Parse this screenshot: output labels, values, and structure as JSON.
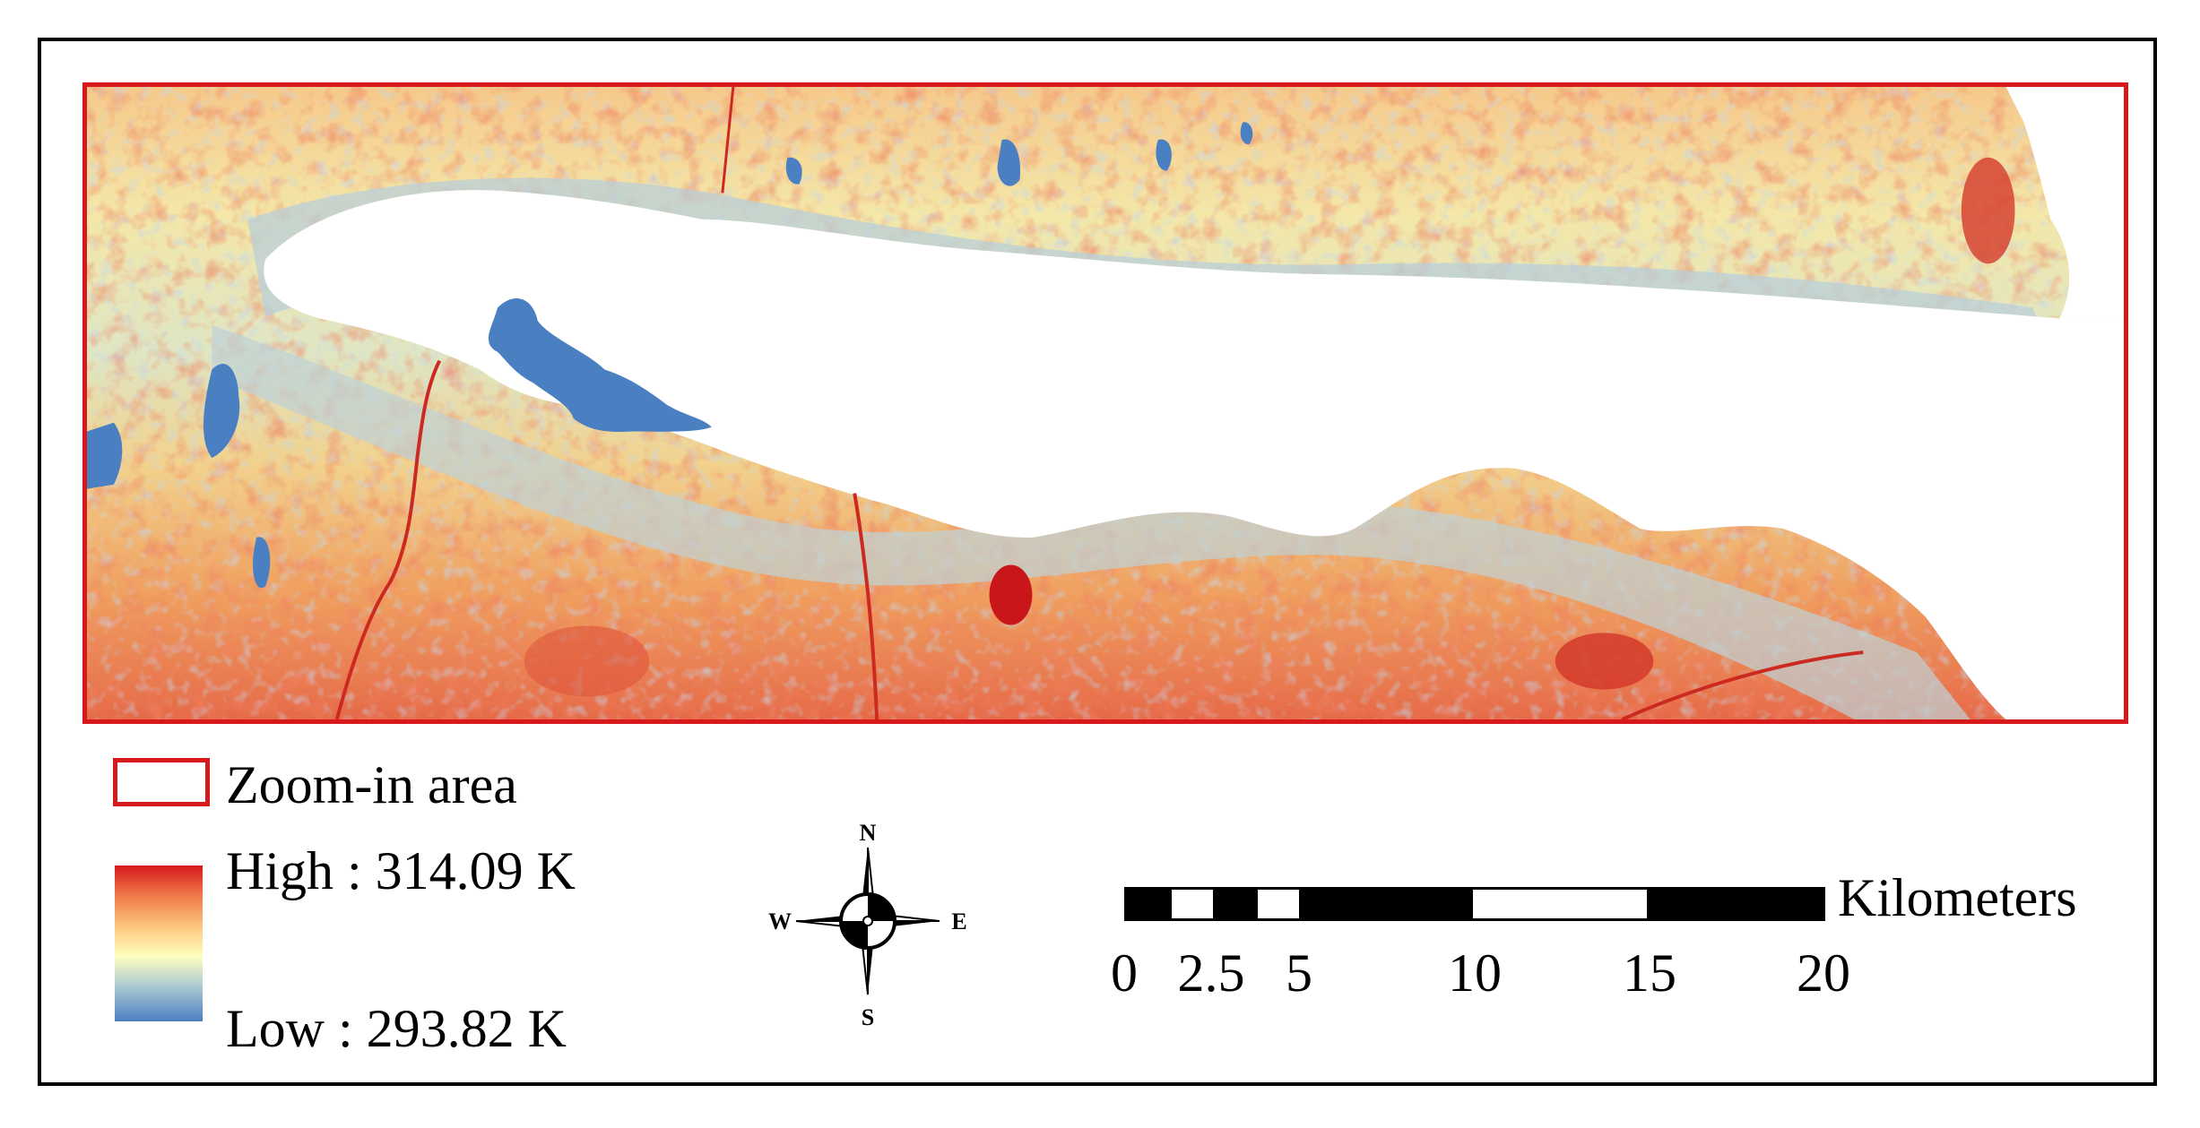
{
  "legend": {
    "zoom_label": "Zoom-in area",
    "high_label": "High : 314.09 K",
    "low_label": "Low : 293.82 K"
  },
  "compass": {
    "north": "N",
    "south": "S",
    "east": "E",
    "west": "W"
  },
  "scale_bar": {
    "unit": "Kilometers",
    "ticks": [
      "0",
      "2.5",
      "5",
      "10",
      "15",
      "20"
    ]
  },
  "colors": {
    "zoom_border": "#d7191c",
    "ramp_high": "#d7191c",
    "ramp_mid": "#ffffbf",
    "ramp_low": "#4a7fc1"
  }
}
